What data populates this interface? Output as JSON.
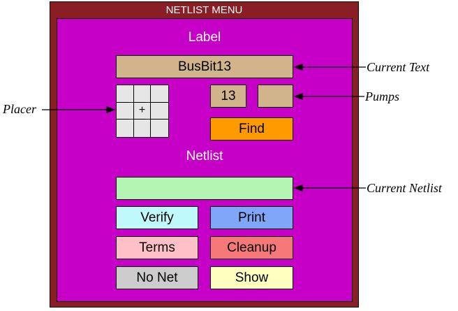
{
  "menu": {
    "title": "NETLIST MENU",
    "label_heading": "Label",
    "current_text_value": "BusBit13",
    "pump_value": "13",
    "pump_second_value": "",
    "placer_center_symbol": "+",
    "find_label": "Find",
    "netlist_heading": "Netlist",
    "current_netlist_value": "",
    "buttons": {
      "verify": "Verify",
      "print": "Print",
      "terms": "Terms",
      "cleanup": "Cleanup",
      "no_net": "No Net",
      "show": "Show"
    }
  },
  "callouts": {
    "current_text": "Current Text",
    "pumps": "Pumps",
    "placer": "Placer",
    "current_netlist": "Current Netlist"
  },
  "colors": {
    "frame": "#8b1e24",
    "panel": "#c700c7",
    "text_field": "#d2b48c",
    "find": "#ff9a00",
    "netlist_field": "#b4f5b4",
    "verify": "#bff9fb",
    "print": "#7fa6f7",
    "terms": "#ffc0c8",
    "cleanup": "#f77878",
    "no_net": "#cccccc",
    "show": "#ffffc0"
  }
}
